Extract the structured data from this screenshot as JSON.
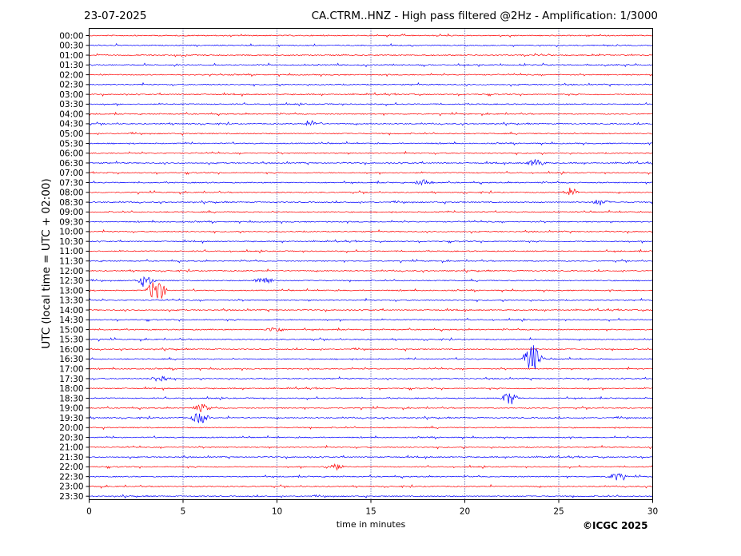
{
  "header": {
    "date": "23-07-2025",
    "title": "CA.CTRM..HNZ - High pass filtered @2Hz - Amplification: 1/3000"
  },
  "footer": {
    "copyright": "©ICGC 2025"
  },
  "colors": {
    "red_trace": "#ff0000",
    "blue_trace": "#0000ff",
    "grid": "#000080",
    "frame": "#000000"
  },
  "chart_data": {
    "type": "line",
    "title": "CA.CTRM..HNZ - High pass filtered @2Hz - Amplification: 1/3000",
    "xlabel": "time in minutes",
    "ylabel": "UTC (local time = UTC + 02:00)",
    "xlim": [
      0,
      30
    ],
    "x_ticks": [
      "0",
      "5",
      "10",
      "15",
      "20",
      "25",
      "30"
    ],
    "grid": "vertical dotted at 5-minute intervals",
    "rows": [
      "00:00",
      "00:30",
      "01:00",
      "01:30",
      "02:00",
      "02:30",
      "03:00",
      "03:30",
      "04:00",
      "04:30",
      "05:00",
      "05:30",
      "06:00",
      "06:30",
      "07:00",
      "07:30",
      "08:00",
      "08:30",
      "09:00",
      "09:30",
      "10:00",
      "10:30",
      "11:00",
      "11:30",
      "12:00",
      "12:30",
      "13:00",
      "13:30",
      "14:00",
      "14:30",
      "15:00",
      "15:30",
      "16:00",
      "16:30",
      "17:00",
      "17:30",
      "18:00",
      "18:30",
      "19:00",
      "19:30",
      "20:00",
      "20:30",
      "21:00",
      "21:30",
      "22:00",
      "22:30",
      "23:00",
      "23:30"
    ],
    "row_colors": "alternating red (even rows) and blue (odd rows)",
    "events": [
      {
        "row": "04:30",
        "minute": 11.9,
        "amplitude": 0.3
      },
      {
        "row": "06:30",
        "minute": 23.8,
        "amplitude": 0.4
      },
      {
        "row": "07:30",
        "minute": 17.8,
        "amplitude": 0.3
      },
      {
        "row": "08:00",
        "minute": 25.7,
        "amplitude": 0.4
      },
      {
        "row": "08:30",
        "minute": 27.2,
        "amplitude": 0.3
      },
      {
        "row": "12:30",
        "minute": 3.0,
        "amplitude": 0.6
      },
      {
        "row": "12:30",
        "minute": 9.3,
        "amplitude": 0.5
      },
      {
        "row": "13:00",
        "minute": 3.6,
        "amplitude": 1.4
      },
      {
        "row": "15:00",
        "minute": 9.9,
        "amplitude": 0.3
      },
      {
        "row": "16:30",
        "minute": 23.6,
        "amplitude": 1.7
      },
      {
        "row": "17:30",
        "minute": 3.8,
        "amplitude": 0.4
      },
      {
        "row": "18:30",
        "minute": 22.4,
        "amplitude": 0.7
      },
      {
        "row": "19:00",
        "minute": 6.0,
        "amplitude": 0.4
      },
      {
        "row": "19:30",
        "minute": 5.9,
        "amplitude": 0.6
      },
      {
        "row": "22:00",
        "minute": 13.0,
        "amplitude": 0.4
      },
      {
        "row": "22:30",
        "minute": 28.1,
        "amplitude": 0.4
      }
    ]
  }
}
